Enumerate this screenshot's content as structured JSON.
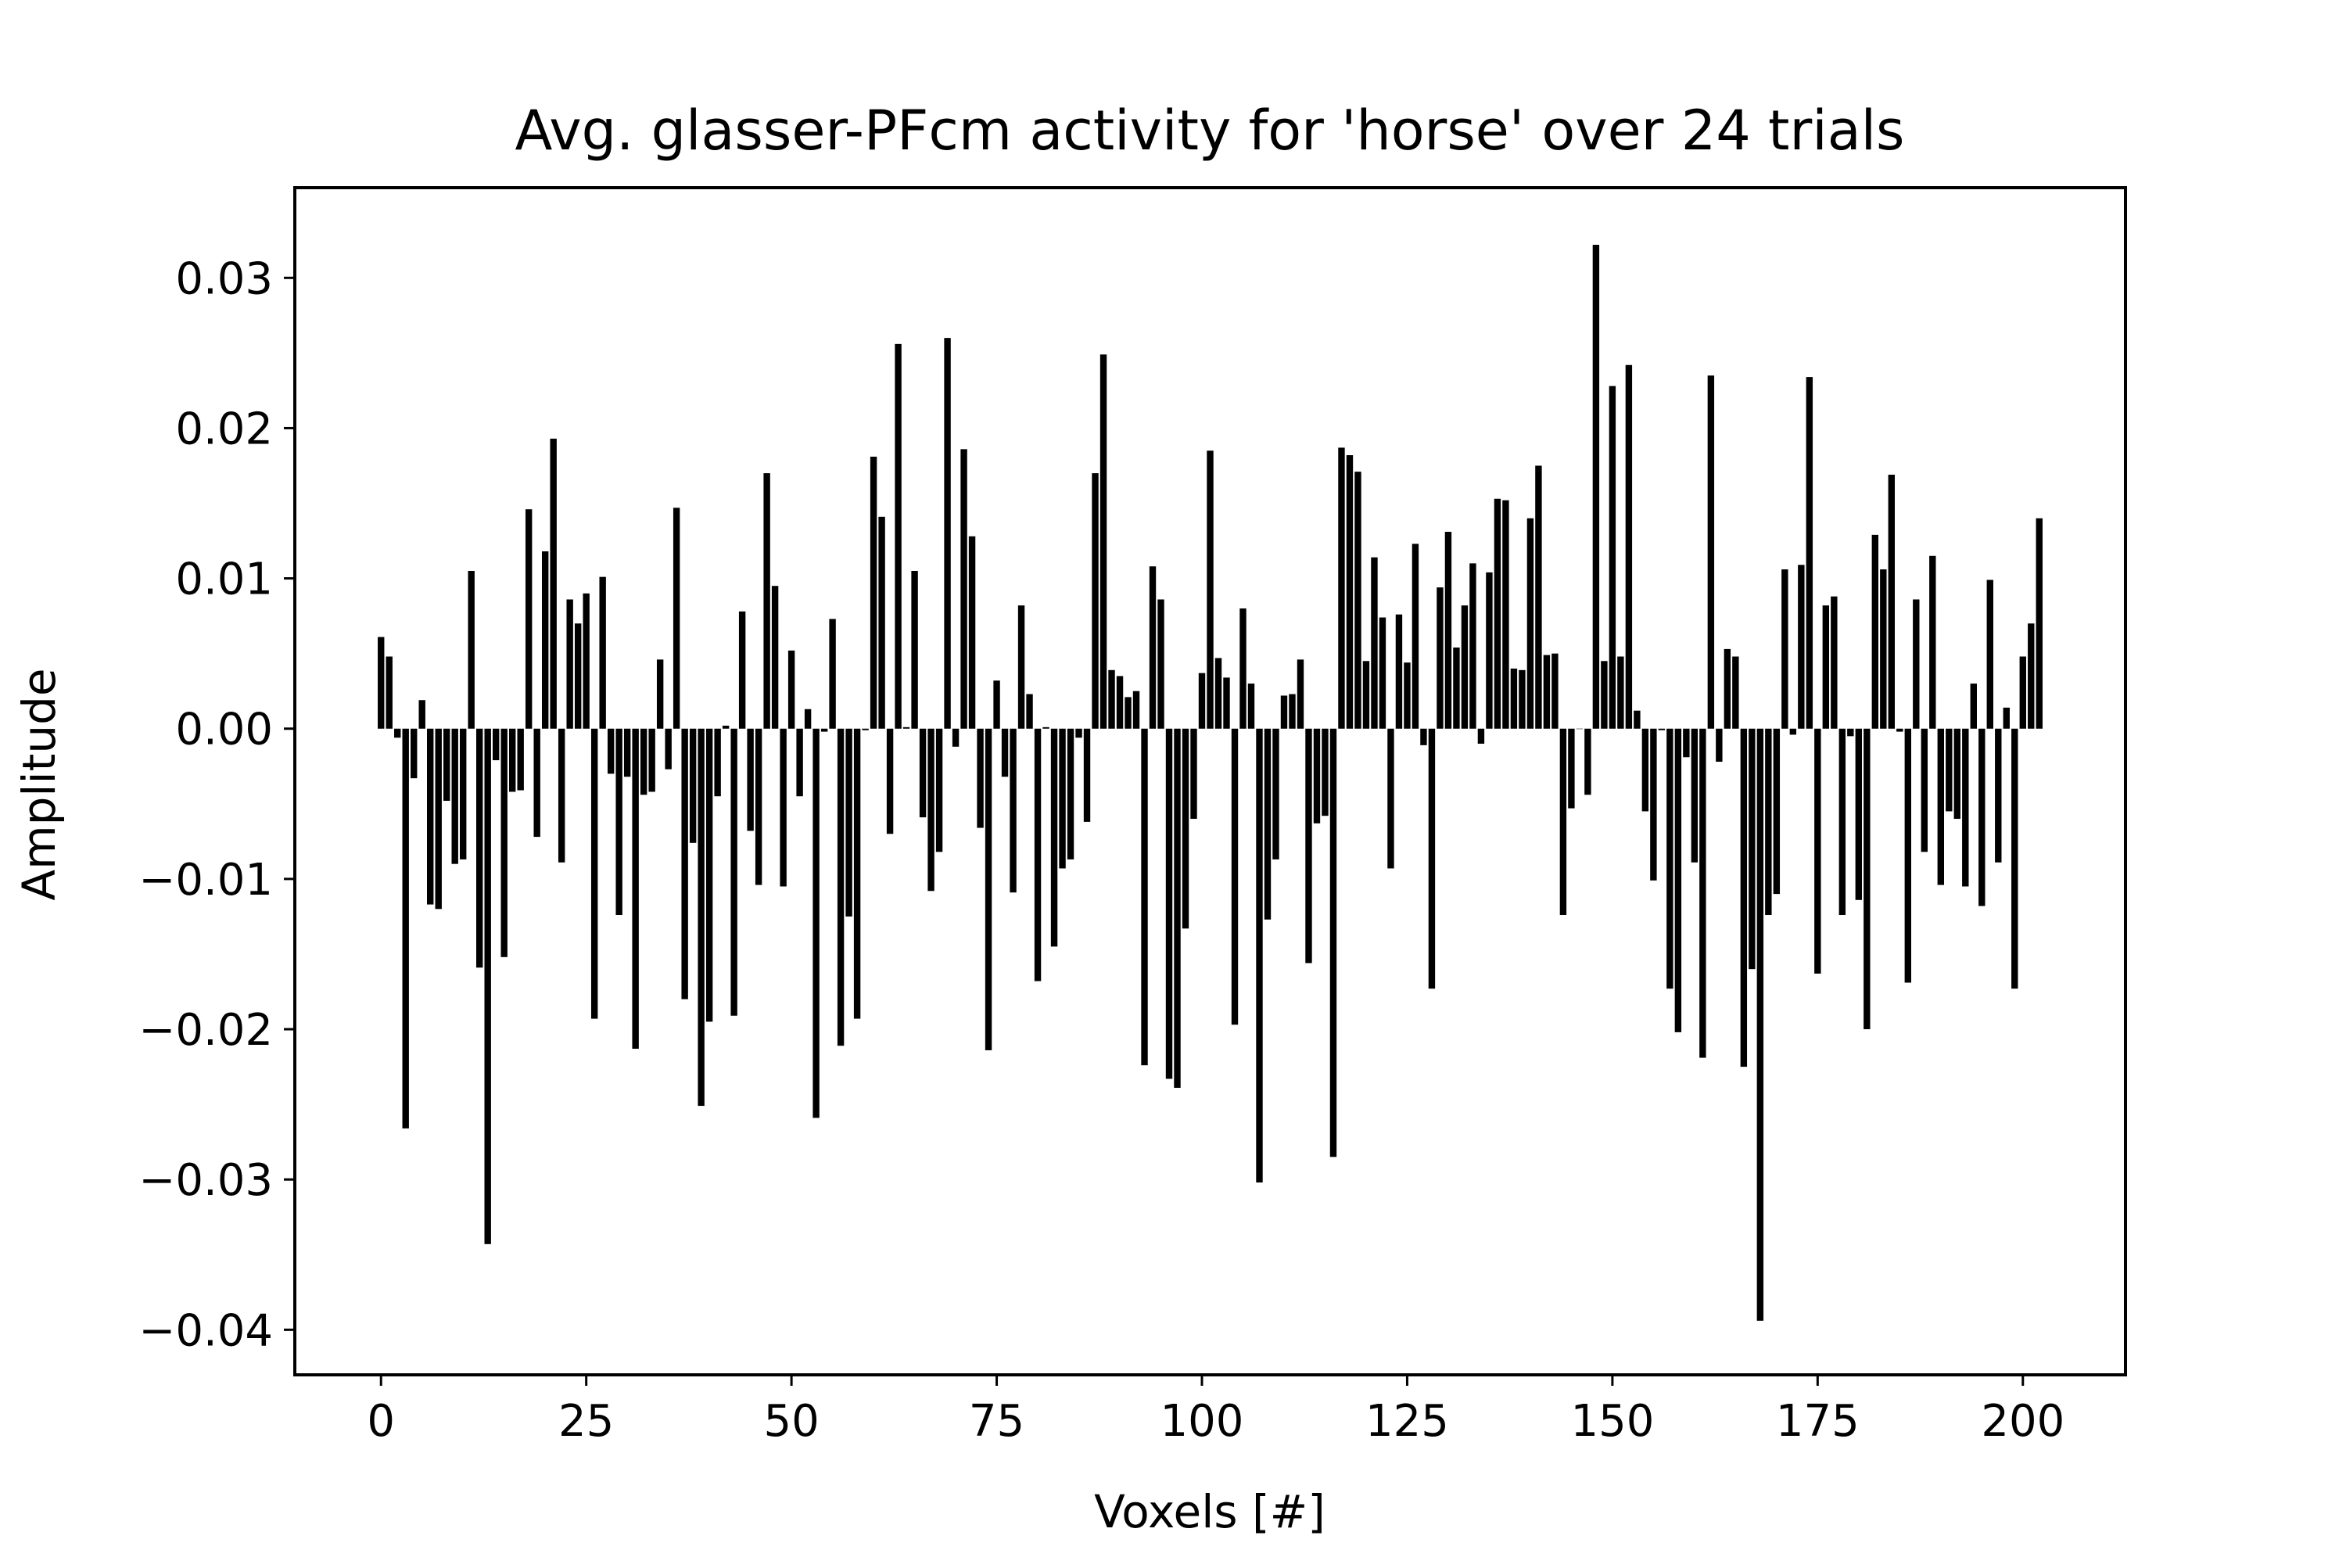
{
  "chart_data": {
    "type": "bar",
    "title": "Avg. glasser-PFcm activity for 'horse' over 24 trials",
    "xlabel": "Voxels [#]",
    "ylabel": "Amplitude",
    "xlim": [
      -10.5,
      212.5
    ],
    "ylim": [
      -0.043,
      0.036
    ],
    "xticks": [
      0,
      25,
      50,
      75,
      100,
      125,
      150,
      175,
      200
    ],
    "xtick_labels": [
      "0",
      "25",
      "50",
      "75",
      "100",
      "125",
      "150",
      "175",
      "200"
    ],
    "yticks": [
      0.03,
      0.02,
      0.01,
      0.0,
      -0.01,
      -0.02,
      -0.03,
      -0.04
    ],
    "ytick_labels": [
      "0.03",
      "0.02",
      "0.01",
      "0.00",
      "−0.01",
      "−0.02",
      "−0.03",
      "−0.04"
    ],
    "grid": false,
    "bar_color": "#000000",
    "x_start": 0,
    "values": [
      0.0061,
      0.0048,
      -0.0006,
      -0.0266,
      -0.0033,
      0.0019,
      -0.0117,
      -0.012,
      -0.0048,
      -0.009,
      -0.0087,
      0.0105,
      -0.0159,
      -0.0343,
      -0.0021,
      -0.0152,
      -0.0042,
      -0.0041,
      0.0146,
      -0.0072,
      0.0118,
      0.0193,
      -0.0089,
      0.0086,
      0.007,
      0.009,
      -0.0193,
      0.0101,
      -0.003,
      -0.0124,
      -0.0032,
      -0.0213,
      -0.0044,
      -0.0042,
      0.0046,
      -0.0027,
      0.0147,
      -0.018,
      -0.0076,
      -0.0251,
      -0.0195,
      -0.0045,
      0.0002,
      -0.0191,
      0.0078,
      -0.0068,
      -0.0104,
      0.017,
      0.0095,
      -0.0105,
      0.0052,
      -0.0045,
      0.0013,
      -0.0259,
      -0.0002,
      0.0073,
      -0.0211,
      -0.0125,
      -0.0193,
      -0.0001,
      0.0181,
      0.0141,
      -0.007,
      0.0256,
      0.0001,
      0.0105,
      -0.0059,
      -0.0108,
      -0.0082,
      0.026,
      -0.0012,
      0.0186,
      0.0128,
      -0.0066,
      -0.0214,
      0.0032,
      -0.0032,
      -0.0109,
      0.0082,
      0.0023,
      -0.0168,
      0.0001,
      -0.0145,
      -0.0093,
      -0.0087,
      -0.0006,
      -0.0062,
      0.017,
      0.0249,
      0.0039,
      0.0035,
      0.0021,
      0.0025,
      -0.0224,
      0.0108,
      0.0086,
      -0.0233,
      -0.0239,
      -0.0133,
      -0.006,
      0.0037,
      0.0185,
      0.0047,
      0.0034,
      -0.0197,
      0.008,
      0.003,
      -0.0302,
      -0.0127,
      -0.0087,
      0.0022,
      0.0023,
      0.0046,
      -0.0156,
      -0.0063,
      -0.0058,
      -0.0285,
      0.0187,
      0.0182,
      0.0171,
      0.0045,
      0.0114,
      0.0074,
      -0.0093,
      0.0076,
      0.0044,
      0.0123,
      -0.0011,
      -0.0173,
      0.0094,
      0.0131,
      0.0054,
      0.0082,
      0.011,
      -0.001,
      0.0104,
      0.0153,
      0.0152,
      0.004,
      0.0039,
      0.014,
      0.0175,
      0.0049,
      0.005,
      -0.0124,
      -0.0053,
      0.0,
      -0.0044,
      0.0322,
      0.0045,
      0.0228,
      0.0048,
      0.0242,
      0.0012,
      -0.0055,
      -0.0101,
      -0.0001,
      -0.0173,
      -0.0202,
      -0.0019,
      -0.0089,
      -0.0219,
      0.0235,
      -0.0022,
      0.0053,
      0.0048,
      -0.0225,
      -0.016,
      -0.0394,
      -0.0124,
      -0.011,
      0.0106,
      -0.0004,
      0.0109,
      0.0234,
      -0.0163,
      0.0082,
      0.0088,
      -0.0124,
      -0.0005,
      -0.0114,
      -0.02,
      0.0129,
      0.0106,
      0.0169,
      -0.0002,
      -0.0169,
      0.0086,
      -0.0082,
      0.0115,
      -0.0104,
      -0.0055,
      -0.006,
      -0.0105,
      0.003,
      -0.0118,
      0.0099,
      -0.0089,
      0.0014,
      -0.0173,
      0.0048,
      0.007,
      0.014
    ]
  }
}
